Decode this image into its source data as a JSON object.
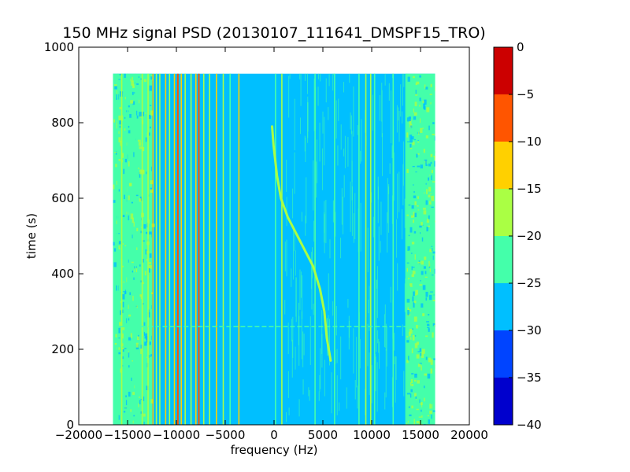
{
  "chart_data": {
    "type": "heatmap",
    "title": "150 MHz signal PSD (20130107_111641_DMSPF15_TRO)",
    "xlabel": "frequency (Hz)",
    "ylabel": "time (s)",
    "xlim": [
      -20000,
      20000
    ],
    "ylim": [
      0,
      1000
    ],
    "xticks": [
      -20000,
      -15000,
      -10000,
      -5000,
      0,
      5000,
      10000,
      15000,
      20000
    ],
    "yticks": [
      0,
      200,
      400,
      600,
      800,
      1000
    ],
    "data_extent": {
      "freq": [
        -16500,
        16500
      ],
      "time": [
        0,
        930
      ]
    },
    "background_level": -27.5,
    "colorbar": {
      "ticks": [
        0,
        -5,
        -10,
        -15,
        -20,
        -25,
        -30,
        -35,
        -40
      ],
      "min": -40,
      "max": 0,
      "bands": [
        {
          "from": -40,
          "to": -35,
          "color": "#0000cd"
        },
        {
          "from": -35,
          "to": -30,
          "color": "#0044ff"
        },
        {
          "from": -30,
          "to": -25,
          "color": "#00bfff"
        },
        {
          "from": -25,
          "to": -20,
          "color": "#44ffaa"
        },
        {
          "from": -20,
          "to": -15,
          "color": "#aaff44"
        },
        {
          "from": -15,
          "to": -10,
          "color": "#ffd000"
        },
        {
          "from": -10,
          "to": -5,
          "color": "#ff5500"
        },
        {
          "from": -5,
          "to": 0,
          "color": "#cc0000"
        }
      ]
    },
    "regions": [
      {
        "freq_from": -16500,
        "freq_to": -12500,
        "level": -22.5
      },
      {
        "freq_from": 13500,
        "freq_to": 16500,
        "level": -22.5
      }
    ],
    "vertical_lines": [
      {
        "freq": -16000,
        "level": -22.5
      },
      {
        "freq": -15600,
        "level": -17.5
      },
      {
        "freq": -15000,
        "level": -22.5
      },
      {
        "freq": -14200,
        "level": -22.5
      },
      {
        "freq": -13500,
        "level": -17.5
      },
      {
        "freq": -12900,
        "level": -17.5
      },
      {
        "freq": -12400,
        "level": -12.5
      },
      {
        "freq": -12050,
        "level": -17.5
      },
      {
        "freq": -11700,
        "level": -17.5
      },
      {
        "freq": -11100,
        "level": -12.5
      },
      {
        "freq": -10700,
        "level": -17.5
      },
      {
        "freq": -10200,
        "level": -12.5
      },
      {
        "freq": -9850,
        "level": -7.5
      },
      {
        "freq": -9500,
        "level": -12.5
      },
      {
        "freq": -9100,
        "level": -17.5
      },
      {
        "freq": -8500,
        "level": -17.5
      },
      {
        "freq": -8000,
        "level": -12.5
      },
      {
        "freq": -7700,
        "level": -7.5
      },
      {
        "freq": -7200,
        "level": -17.5
      },
      {
        "freq": -6600,
        "level": -17.5
      },
      {
        "freq": -5900,
        "level": -12.5
      },
      {
        "freq": -5200,
        "level": -17.5
      },
      {
        "freq": -4500,
        "level": -22.5
      },
      {
        "freq": -3600,
        "level": -12.5
      },
      {
        "freq": 150,
        "level": -22.5
      },
      {
        "freq": 800,
        "level": -17.5
      },
      {
        "freq": 4200,
        "level": -22.5
      },
      {
        "freq": 6200,
        "level": -22.5
      },
      {
        "freq": 8700,
        "level": -22.5
      },
      {
        "freq": 9400,
        "level": -17.5
      },
      {
        "freq": 9900,
        "level": -17.5
      },
      {
        "freq": 10300,
        "level": -22.5
      },
      {
        "freq": 12200,
        "level": -22.5
      },
      {
        "freq": 13500,
        "level": -22.5
      }
    ],
    "doppler_trace": {
      "level": -17.5,
      "points": [
        {
          "freq": 5800,
          "time": 170
        },
        {
          "freq": 5400,
          "time": 230
        },
        {
          "freq": 5150,
          "time": 300
        },
        {
          "freq": 4700,
          "time": 360
        },
        {
          "freq": 4000,
          "time": 420
        },
        {
          "freq": 3000,
          "time": 470
        },
        {
          "freq": 2200,
          "time": 510
        },
        {
          "freq": 1400,
          "time": 550
        },
        {
          "freq": 700,
          "time": 600
        },
        {
          "freq": 300,
          "time": 660
        },
        {
          "freq": -50,
          "time": 740
        },
        {
          "freq": -200,
          "time": 790
        }
      ]
    },
    "horizontal_streak": {
      "time": 260,
      "freq_from": -16500,
      "freq_to": 16500,
      "level": -22.5
    }
  }
}
